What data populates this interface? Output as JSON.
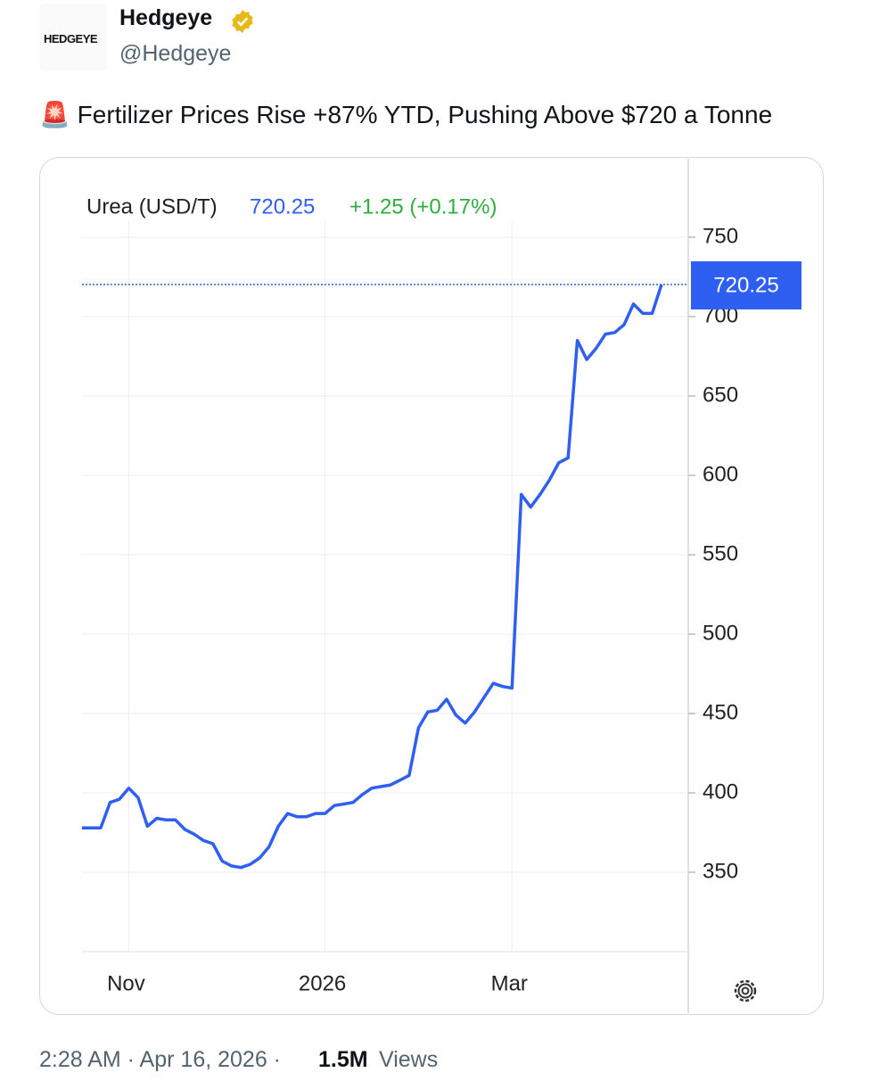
{
  "tweet": {
    "avatar_text": "HEDGEYE",
    "name": "Hedgeye",
    "handle": "@Hedgeye",
    "text": "🚨 Fertilizer Prices Rise +87% YTD, Pushing Above $720 a Tonne",
    "timestamp": "2:28 AM · Apr 16, 2026 ·",
    "views_count": "1.5M",
    "views_label": "Views"
  },
  "chart_data": {
    "type": "line",
    "title": "Urea (USD/T)",
    "change": "+1.25 (+0.17%)",
    "categories": [
      null,
      null,
      null,
      null,
      null,
      "Nov",
      null,
      null,
      null,
      null,
      null,
      null,
      null,
      null,
      null,
      null,
      null,
      null,
      null,
      null,
      null,
      null,
      null,
      null,
      null,
      null,
      "2026",
      null,
      null,
      null,
      null,
      null,
      null,
      null,
      null,
      null,
      null,
      null,
      null,
      null,
      null,
      null,
      null,
      null,
      null,
      null,
      "Mar",
      null,
      null,
      null,
      null,
      null,
      null,
      null,
      null,
      null,
      null,
      null,
      null,
      null,
      null,
      null,
      null
    ],
    "series": [
      {
        "name": "Urea (USD/T)",
        "color": "#2f5ff0",
        "values": [
          378,
          378,
          378,
          394,
          396,
          403,
          397,
          379,
          384,
          383,
          383,
          377,
          374,
          370,
          368,
          357,
          354,
          353,
          355,
          359,
          366,
          379,
          387,
          385,
          385,
          387,
          387,
          392,
          393,
          394,
          399,
          403,
          404,
          405,
          408,
          411,
          441,
          451,
          452,
          459,
          449,
          444,
          451,
          460,
          469,
          467,
          466,
          588,
          580,
          588,
          597,
          608,
          611,
          685,
          673,
          680,
          689,
          690,
          695,
          708,
          702,
          702,
          720.25
        ]
      }
    ],
    "ylim": [
      300,
      760
    ],
    "yticks": [
      350,
      400,
      450,
      500,
      550,
      600,
      650,
      700,
      750
    ],
    "grid": true
  }
}
